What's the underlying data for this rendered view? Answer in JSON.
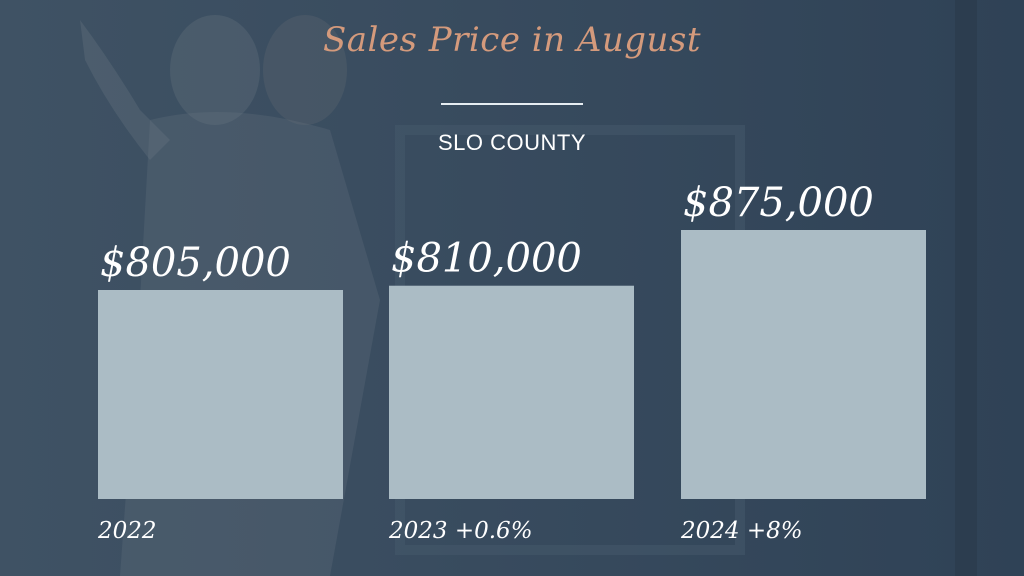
{
  "slide": {
    "title": "Sales Price in August",
    "subtitle": "SLO COUNTY"
  },
  "colors": {
    "background": "#34495e",
    "title": "#d49a7c",
    "bar": "#abbcc5",
    "text": "#ffffff"
  },
  "chart_data": {
    "type": "bar",
    "categories": [
      "2022",
      "2023 +0.6%",
      "2024 +8%"
    ],
    "values": [
      805000,
      810000,
      875000
    ],
    "data_labels": [
      "$805,000",
      "$810,000",
      "$875,000"
    ],
    "title": "Sales Price in August",
    "subtitle": "SLO COUNTY",
    "xlabel": "",
    "ylabel": "",
    "grid": false,
    "legend": "none"
  }
}
